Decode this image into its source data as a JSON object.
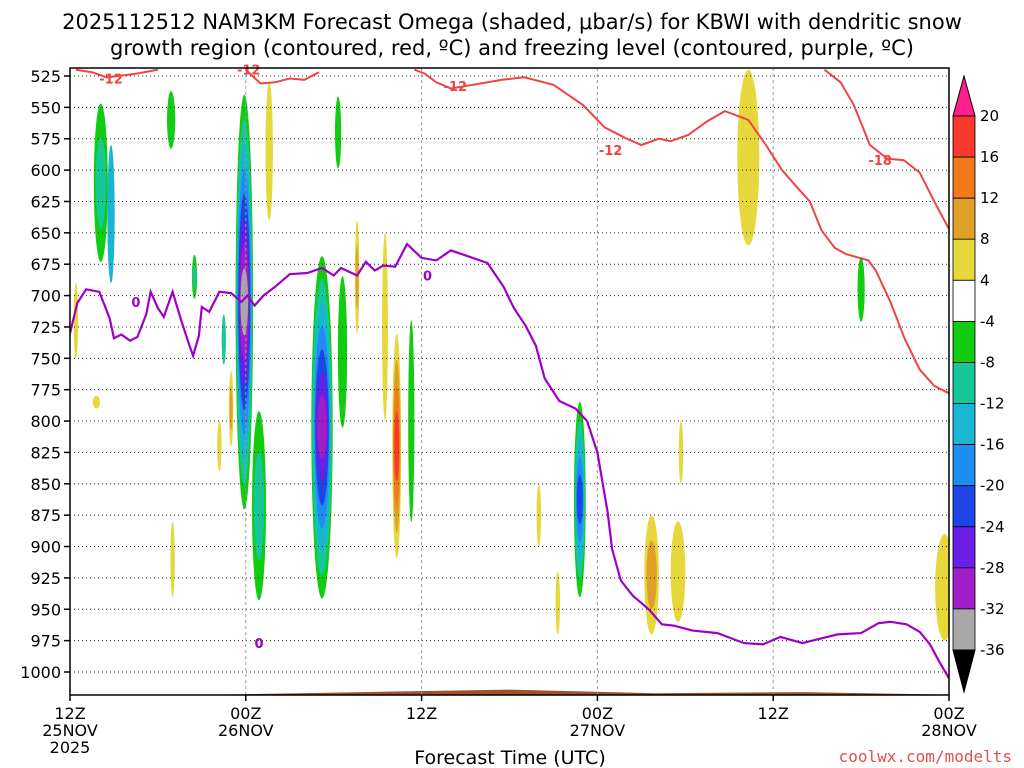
{
  "chart_data": {
    "type": "time-height contour",
    "title_line1": "2025112512 NAM3KM Forecast Omega (shaded, μbar/s) for KBWI with dendritic snow",
    "title_line2": "growth region (contoured, red, ºC) and freezing level (contoured, purple, ºC)",
    "xlabel": "Forecast Time (UTC)",
    "credit": "coolwx.com/modelts",
    "x_range_hours": [
      0,
      60
    ],
    "x_ticks": [
      {
        "h": 0,
        "l1": "12Z",
        "l2": "25NOV",
        "l3": "2025"
      },
      {
        "h": 12,
        "l1": "00Z",
        "l2": "26NOV",
        "l3": ""
      },
      {
        "h": 24,
        "l1": "12Z",
        "l2": "",
        "l3": ""
      },
      {
        "h": 36,
        "l1": "00Z",
        "l2": "27NOV",
        "l3": ""
      },
      {
        "h": 48,
        "l1": "12Z",
        "l2": "",
        "l3": ""
      },
      {
        "h": 60,
        "l1": "00Z",
        "l2": "28NOV",
        "l3": ""
      }
    ],
    "y_range_hpa": [
      1010,
      520
    ],
    "y_ticks": [
      "525",
      "550",
      "575",
      "600",
      "625",
      "650",
      "675",
      "700",
      "725",
      "750",
      "775",
      "800",
      "825",
      "850",
      "875",
      "900",
      "925",
      "950",
      "975",
      "1000"
    ],
    "colorbar": {
      "labels": [
        "20",
        "16",
        "12",
        "8",
        "4",
        "-4",
        "-8",
        "-12",
        "-16",
        "-20",
        "-24",
        "-28",
        "-32",
        "-36"
      ],
      "levels": [
        {
          "lo": 20,
          "hi": 24,
          "color": "#ff1e8c"
        },
        {
          "lo": 16,
          "hi": 20,
          "color": "#f83a2c"
        },
        {
          "lo": 12,
          "hi": 16,
          "color": "#f07a1a"
        },
        {
          "lo": 8,
          "hi": 12,
          "color": "#e0a028"
        },
        {
          "lo": 4,
          "hi": 8,
          "color": "#e6d83a"
        },
        {
          "lo": -4,
          "hi": 4,
          "color": "#ffffff"
        },
        {
          "lo": -8,
          "hi": -4,
          "color": "#12cc12"
        },
        {
          "lo": -12,
          "hi": -8,
          "color": "#16c79a"
        },
        {
          "lo": -16,
          "hi": -12,
          "color": "#18b6d2"
        },
        {
          "lo": -20,
          "hi": -16,
          "color": "#1e8cf2"
        },
        {
          "lo": -24,
          "hi": -20,
          "color": "#1e46e6"
        },
        {
          "lo": -28,
          "hi": -24,
          "color": "#6a1ee6"
        },
        {
          "lo": -32,
          "hi": -28,
          "color": "#a01ec8"
        },
        {
          "lo": -36,
          "hi": -32,
          "color": "#a8a8a8"
        },
        {
          "lo": -40,
          "hi": -36,
          "color": "#000000"
        }
      ]
    },
    "omega_cells": [
      {
        "h": 2.1,
        "p1": 520,
        "p2": 700,
        "w": 1.2,
        "levels": [
          -4,
          -8,
          -12
        ]
      },
      {
        "h": 2.8,
        "p1": 580,
        "p2": 690,
        "w": 0.5,
        "levels": [
          -16
        ]
      },
      {
        "h": 1.8,
        "p1": 780,
        "p2": 790,
        "w": 0.5,
        "levels": [
          4
        ]
      },
      {
        "h": 1.7,
        "p1": 830,
        "p2": 860,
        "w": 0.5,
        "levels": [
          -4
        ]
      },
      {
        "h": 0.4,
        "p1": 690,
        "p2": 750,
        "w": 0.3,
        "levels": [
          4
        ]
      },
      {
        "h": 6.9,
        "p1": 520,
        "p2": 600,
        "w": 0.8,
        "levels": [
          -4,
          -8
        ]
      },
      {
        "h": 8.5,
        "p1": 660,
        "p2": 710,
        "w": 0.45,
        "levels": [
          -4,
          -8,
          -12
        ]
      },
      {
        "h": 10.5,
        "p1": 700,
        "p2": 770,
        "w": 0.4,
        "levels": [
          -4,
          -12
        ]
      },
      {
        "h": 11.9,
        "p1": 520,
        "p2": 890,
        "w": 1.3,
        "levels": [
          -4,
          -8,
          -12,
          -16,
          -20,
          -24,
          -28,
          -32,
          -36
        ]
      },
      {
        "h": 11.0,
        "p1": 760,
        "p2": 820,
        "w": 0.3,
        "levels": [
          4,
          8
        ]
      },
      {
        "h": 7.0,
        "p1": 880,
        "p2": 940,
        "w": 0.3,
        "levels": [
          4
        ]
      },
      {
        "h": 10.2,
        "p1": 800,
        "p2": 840,
        "w": 0.3,
        "levels": [
          4
        ]
      },
      {
        "h": 12.9,
        "p1": 760,
        "p2": 975,
        "w": 1.2,
        "levels": [
          -4,
          -8,
          -12
        ]
      },
      {
        "h": 13.6,
        "p1": 530,
        "p2": 640,
        "w": 0.5,
        "levels": [
          4
        ]
      },
      {
        "h": 15.3,
        "p1": 530,
        "p2": 660,
        "w": 0.7,
        "levels": [
          -4
        ]
      },
      {
        "h": 14.5,
        "p1": 880,
        "p2": 950,
        "w": 0.4,
        "levels": [
          -4
        ]
      },
      {
        "h": 17.2,
        "p1": 650,
        "p2": 960,
        "w": 1.6,
        "levels": [
          -4,
          -8,
          -12,
          -16,
          -20,
          -24,
          -28,
          -32
        ]
      },
      {
        "h": 18.6,
        "p1": 640,
        "p2": 850,
        "w": 0.9,
        "levels": [
          -4,
          -8
        ]
      },
      {
        "h": 19.4,
        "p1": 700,
        "p2": 770,
        "w": 0.5,
        "levels": [
          -4
        ]
      },
      {
        "h": 17.0,
        "p1": 520,
        "p2": 600,
        "w": 0.4,
        "levels": [
          -4
        ]
      },
      {
        "h": 18.3,
        "p1": 520,
        "p2": 620,
        "w": 0.6,
        "levels": [
          -4,
          -8
        ]
      },
      {
        "h": 19.6,
        "p1": 640,
        "p2": 730,
        "w": 0.3,
        "levels": [
          4,
          8
        ]
      },
      {
        "h": 20.1,
        "p1": 550,
        "p2": 650,
        "w": 0.3,
        "levels": [
          -4
        ]
      },
      {
        "h": 21.5,
        "p1": 650,
        "p2": 800,
        "w": 0.4,
        "levels": [
          4
        ]
      },
      {
        "h": 22.3,
        "p1": 710,
        "p2": 930,
        "w": 0.7,
        "levels": [
          -4,
          4,
          8,
          12,
          16
        ]
      },
      {
        "h": 23.3,
        "p1": 660,
        "p2": 940,
        "w": 0.6,
        "levels": [
          -4,
          -8
        ]
      },
      {
        "h": 23.0,
        "p1": 520,
        "p2": 640,
        "w": 0.4,
        "levels": [
          -4
        ]
      },
      {
        "h": 26.1,
        "p1": 600,
        "p2": 660,
        "w": 0.35,
        "levels": [
          -4
        ]
      },
      {
        "h": 24.2,
        "p1": 780,
        "p2": 820,
        "w": 0.3,
        "levels": [
          -4
        ]
      },
      {
        "h": 26.2,
        "p1": 920,
        "p2": 960,
        "w": 0.3,
        "levels": [
          -4
        ]
      },
      {
        "h": 28.5,
        "p1": 880,
        "p2": 930,
        "w": 0.3,
        "levels": [
          -4
        ]
      },
      {
        "h": 32.0,
        "p1": 850,
        "p2": 900,
        "w": 0.3,
        "levels": [
          4
        ]
      },
      {
        "h": 33.3,
        "p1": 920,
        "p2": 970,
        "w": 0.3,
        "levels": [
          4
        ]
      },
      {
        "h": 34.8,
        "p1": 770,
        "p2": 955,
        "w": 0.9,
        "levels": [
          -4,
          -8,
          -12,
          -16,
          -20,
          -24
        ]
      },
      {
        "h": 36.6,
        "p1": 810,
        "p2": 830,
        "w": 0.3,
        "levels": [
          -4
        ]
      },
      {
        "h": 38.7,
        "p1": 580,
        "p2": 720,
        "w": 0.4,
        "levels": [
          -4
        ]
      },
      {
        "h": 37.8,
        "p1": 755,
        "p2": 800,
        "w": 0.35,
        "levels": [
          -4
        ]
      },
      {
        "h": 40.6,
        "p1": 520,
        "p2": 710,
        "w": 0.7,
        "levels": [
          -4
        ]
      },
      {
        "h": 42.0,
        "p1": 520,
        "p2": 700,
        "w": 0.5,
        "levels": [
          -4
        ]
      },
      {
        "h": 39.7,
        "p1": 875,
        "p2": 970,
        "w": 1.0,
        "levels": [
          4,
          8
        ]
      },
      {
        "h": 41.5,
        "p1": 880,
        "p2": 960,
        "w": 1.0,
        "levels": [
          4
        ]
      },
      {
        "h": 41.7,
        "p1": 800,
        "p2": 850,
        "w": 0.3,
        "levels": [
          4
        ]
      },
      {
        "h": 39.0,
        "p1": 890,
        "p2": 930,
        "w": 0.3,
        "levels": [
          -4
        ]
      },
      {
        "h": 43.0,
        "p1": 590,
        "p2": 650,
        "w": 0.4,
        "levels": [
          -4
        ]
      },
      {
        "h": 44.3,
        "p1": 840,
        "p2": 880,
        "w": 0.3,
        "levels": [
          -4
        ]
      },
      {
        "h": 44.6,
        "p1": 520,
        "p2": 650,
        "w": 0.8,
        "levels": [
          -4
        ]
      },
      {
        "h": 46.3,
        "p1": 520,
        "p2": 660,
        "w": 1.5,
        "levels": [
          4
        ]
      },
      {
        "h": 47.1,
        "p1": 780,
        "p2": 830,
        "w": 0.35,
        "levels": [
          -4
        ]
      },
      {
        "h": 47.9,
        "p1": 810,
        "p2": 880,
        "w": 0.5,
        "levels": [
          -4
        ]
      },
      {
        "h": 51.7,
        "p1": 520,
        "p2": 610,
        "w": 0.8,
        "levels": [
          -4
        ]
      },
      {
        "h": 52.1,
        "p1": 800,
        "p2": 830,
        "w": 0.3,
        "levels": [
          -4
        ]
      },
      {
        "h": 54.0,
        "p1": 650,
        "p2": 740,
        "w": 0.7,
        "levels": [
          -4,
          -8
        ]
      },
      {
        "h": 59.7,
        "p1": 890,
        "p2": 975,
        "w": 1.3,
        "levels": [
          4
        ]
      }
    ],
    "dgz_minus12": [
      {
        "label": "-12",
        "label_at": [
          2.8,
          527
        ],
        "points": [
          [
            0.4,
            520
          ],
          [
            1.5,
            522
          ],
          [
            2.5,
            526
          ],
          [
            3.3,
            525
          ],
          [
            4.6,
            523
          ],
          [
            6.0,
            520
          ]
        ]
      },
      {
        "label": "-12",
        "label_at": [
          12.2,
          520
        ],
        "points": [
          [
            12.0,
            520
          ],
          [
            13.0,
            531
          ],
          [
            14.0,
            530
          ],
          [
            15.0,
            527
          ],
          [
            16.0,
            528
          ],
          [
            17.0,
            522
          ]
        ]
      },
      {
        "label": "-12",
        "label_at": [
          26.3,
          533
        ],
        "points": [
          [
            23.5,
            520
          ],
          [
            24.2,
            523
          ],
          [
            25.0,
            530
          ],
          [
            26.0,
            535
          ],
          [
            27.5,
            532
          ],
          [
            29.5,
            528
          ],
          [
            31.0,
            526
          ],
          [
            33.0,
            532
          ],
          [
            35.0,
            548
          ],
          [
            36.5,
            566
          ],
          [
            38.0,
            575
          ],
          [
            39.0,
            580
          ],
          [
            40.2,
            575
          ],
          [
            41.0,
            577
          ],
          [
            42.2,
            572
          ],
          [
            43.5,
            561
          ],
          [
            44.7,
            553
          ],
          [
            46.3,
            560
          ],
          [
            47.5,
            580
          ],
          [
            48.6,
            600
          ],
          [
            49.5,
            612
          ],
          [
            50.5,
            625
          ],
          [
            51.3,
            648
          ],
          [
            52.2,
            662
          ],
          [
            53.0,
            667
          ],
          [
            54.5,
            672
          ],
          [
            55.0,
            680
          ],
          [
            56.0,
            705
          ],
          [
            57.0,
            735
          ],
          [
            58.0,
            759
          ],
          [
            59.0,
            772
          ],
          [
            60.0,
            778
          ]
        ]
      },
      {
        "label": "-12",
        "label_at": [
          36.9,
          584
        ],
        "points": []
      }
    ],
    "dgz_minus18": {
      "label": "-18",
      "label_at": [
        55.3,
        592
      ],
      "points": [
        [
          51.5,
          520
        ],
        [
          52.6,
          530
        ],
        [
          53.5,
          548
        ],
        [
          54.6,
          580
        ],
        [
          55.8,
          591
        ],
        [
          56.9,
          592
        ],
        [
          58.0,
          602
        ],
        [
          59.0,
          625
        ],
        [
          60.0,
          647
        ]
      ]
    },
    "freezing_level": {
      "label": "0",
      "label_at": [
        12.9,
        977
      ],
      "extra_labels": [
        {
          "label": "0",
          "at": [
            4.5,
            705
          ]
        },
        {
          "label": "0",
          "at": [
            24.4,
            684
          ]
        }
      ],
      "points": [
        [
          0.0,
          730
        ],
        [
          0.5,
          706
        ],
        [
          1.1,
          695
        ],
        [
          2.0,
          697
        ],
        [
          2.7,
          718
        ],
        [
          3.0,
          734
        ],
        [
          3.5,
          731
        ],
        [
          4.1,
          736
        ],
        [
          4.6,
          733
        ],
        [
          5.2,
          715
        ],
        [
          5.5,
          697
        ],
        [
          6.0,
          710
        ],
        [
          6.4,
          717
        ],
        [
          7.0,
          697
        ],
        [
          7.6,
          720
        ],
        [
          8.1,
          738
        ],
        [
          8.4,
          748
        ],
        [
          8.8,
          732
        ],
        [
          9.0,
          709
        ],
        [
          9.5,
          713
        ],
        [
          10.2,
          697
        ],
        [
          11.0,
          698
        ],
        [
          11.7,
          705
        ],
        [
          12.1,
          700
        ],
        [
          12.6,
          708
        ],
        [
          13.2,
          700
        ],
        [
          14.0,
          693
        ],
        [
          15.0,
          683
        ],
        [
          16.2,
          682
        ],
        [
          17.2,
          678
        ],
        [
          18.0,
          684
        ],
        [
          18.5,
          678
        ],
        [
          19.6,
          684
        ],
        [
          20.2,
          673
        ],
        [
          20.8,
          680
        ],
        [
          21.4,
          676
        ],
        [
          22.2,
          677
        ],
        [
          23.0,
          659
        ],
        [
          24.0,
          670
        ],
        [
          25.0,
          672
        ],
        [
          26.0,
          664
        ],
        [
          27.0,
          668
        ],
        [
          28.5,
          674
        ],
        [
          29.6,
          693
        ],
        [
          30.3,
          710
        ],
        [
          31.1,
          724
        ],
        [
          31.8,
          740
        ],
        [
          32.4,
          766
        ],
        [
          33.4,
          784
        ],
        [
          34.5,
          790
        ],
        [
          35.3,
          800
        ],
        [
          36.0,
          825
        ],
        [
          36.7,
          873
        ],
        [
          37.0,
          902
        ],
        [
          37.6,
          927
        ],
        [
          38.4,
          939
        ],
        [
          39.5,
          950
        ],
        [
          40.4,
          962
        ],
        [
          41.2,
          963
        ],
        [
          42.5,
          967
        ],
        [
          44.2,
          969
        ],
        [
          46.0,
          977
        ],
        [
          47.3,
          978
        ],
        [
          48.5,
          972
        ],
        [
          50.0,
          977
        ],
        [
          51.0,
          974
        ],
        [
          52.4,
          970
        ],
        [
          54.0,
          969
        ],
        [
          55.2,
          961
        ],
        [
          56.0,
          960
        ],
        [
          57.1,
          962
        ],
        [
          58.0,
          968
        ],
        [
          58.7,
          978
        ],
        [
          59.3,
          991
        ],
        [
          60.0,
          1005
        ]
      ]
    },
    "terrain_base_hpa": [
      1019,
      1018,
      1016,
      1014,
      1017,
      1016,
      1018
    ]
  }
}
